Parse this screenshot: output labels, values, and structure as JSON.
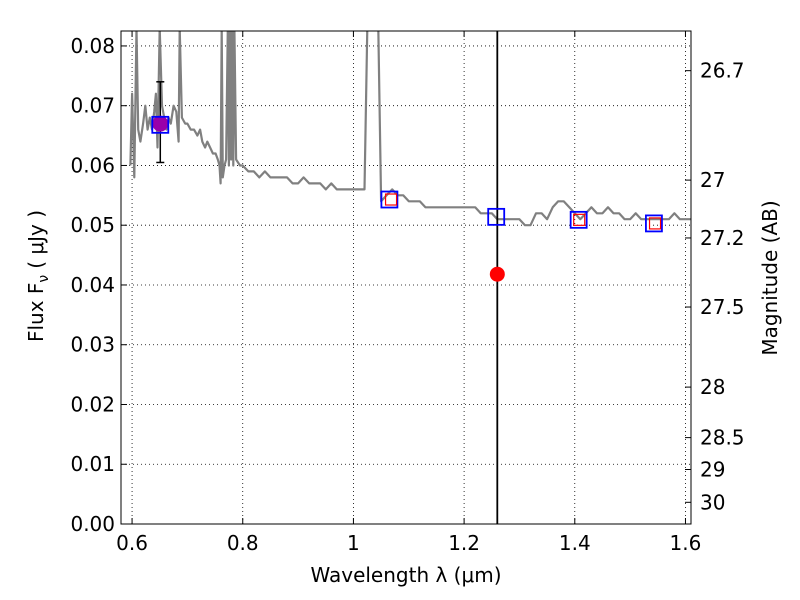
{
  "chart_data": {
    "type": "line",
    "xlabel": "Wavelength  λ (μm)",
    "ylabel": "Flux  F",
    "ylabel_sub": "ν",
    "ylabel_unit": "( μJy )",
    "y2label": "Magnitude (AB)",
    "xlim": [
      0.58,
      1.61
    ],
    "ylim": [
      0.0,
      0.0825
    ],
    "grid": true,
    "x_ticks": [
      {
        "value": 0.6,
        "label": "0.6"
      },
      {
        "value": 0.8,
        "label": "0.8"
      },
      {
        "value": 1.0,
        "label": "1"
      },
      {
        "value": 1.2,
        "label": "1.2"
      },
      {
        "value": 1.4,
        "label": "1.4"
      },
      {
        "value": 1.6,
        "label": "1.6"
      }
    ],
    "y_ticks": [
      {
        "value": 0.0,
        "label": "0.00"
      },
      {
        "value": 0.01,
        "label": "0.01"
      },
      {
        "value": 0.02,
        "label": "0.02"
      },
      {
        "value": 0.03,
        "label": "0.03"
      },
      {
        "value": 0.04,
        "label": "0.04"
      },
      {
        "value": 0.05,
        "label": "0.05"
      },
      {
        "value": 0.06,
        "label": "0.06"
      },
      {
        "value": 0.07,
        "label": "0.07"
      },
      {
        "value": 0.08,
        "label": "0.08"
      }
    ],
    "y2_ticks": [
      {
        "mag": 26.7,
        "label": "26.7"
      },
      {
        "mag": 27.0,
        "label": "27"
      },
      {
        "mag": 27.2,
        "label": "27.2"
      },
      {
        "mag": 27.5,
        "label": "27.5"
      },
      {
        "mag": 28.0,
        "label": "28"
      },
      {
        "mag": 28.5,
        "label": "28.5"
      },
      {
        "mag": 29.0,
        "label": "29"
      },
      {
        "mag": 30.0,
        "label": "30"
      }
    ],
    "model_spectrum": {
      "color": "#808080",
      "points": [
        [
          0.597,
          0.06
        ],
        [
          0.6,
          0.072
        ],
        [
          0.604,
          0.058
        ],
        [
          0.608,
          0.083
        ],
        [
          0.611,
          0.066
        ],
        [
          0.615,
          0.064
        ],
        [
          0.62,
          0.067
        ],
        [
          0.624,
          0.07
        ],
        [
          0.628,
          0.066
        ],
        [
          0.632,
          0.068
        ],
        [
          0.636,
          0.066
        ],
        [
          0.64,
          0.069
        ],
        [
          0.643,
          0.072
        ],
        [
          0.646,
          0.063
        ],
        [
          0.65,
          0.083
        ],
        [
          0.654,
          0.07
        ],
        [
          0.658,
          0.068
        ],
        [
          0.662,
          0.066
        ],
        [
          0.666,
          0.068
        ],
        [
          0.67,
          0.067
        ],
        [
          0.675,
          0.07
        ],
        [
          0.68,
          0.069
        ],
        [
          0.684,
          0.064
        ],
        [
          0.686,
          0.083
        ],
        [
          0.69,
          0.068
        ],
        [
          0.696,
          0.067
        ],
        [
          0.7,
          0.067
        ],
        [
          0.706,
          0.066
        ],
        [
          0.712,
          0.066
        ],
        [
          0.718,
          0.065
        ],
        [
          0.723,
          0.066
        ],
        [
          0.727,
          0.064
        ],
        [
          0.732,
          0.063
        ],
        [
          0.736,
          0.064
        ],
        [
          0.741,
          0.063
        ],
        [
          0.746,
          0.062
        ],
        [
          0.751,
          0.062
        ],
        [
          0.755,
          0.061
        ],
        [
          0.758,
          0.06
        ],
        [
          0.76,
          0.057
        ],
        [
          0.762,
          0.083
        ],
        [
          0.764,
          0.058
        ],
        [
          0.767,
          0.06
        ],
        [
          0.77,
          0.061
        ],
        [
          0.773,
          0.083
        ],
        [
          0.775,
          0.06
        ],
        [
          0.777,
          0.083
        ],
        [
          0.779,
          0.061
        ],
        [
          0.781,
          0.083
        ],
        [
          0.783,
          0.06
        ],
        [
          0.785,
          0.083
        ],
        [
          0.788,
          0.061
        ],
        [
          0.795,
          0.06
        ],
        [
          0.8,
          0.06
        ],
        [
          0.81,
          0.059
        ],
        [
          0.82,
          0.059
        ],
        [
          0.83,
          0.058
        ],
        [
          0.84,
          0.059
        ],
        [
          0.85,
          0.058
        ],
        [
          0.86,
          0.058
        ],
        [
          0.87,
          0.058
        ],
        [
          0.88,
          0.058
        ],
        [
          0.89,
          0.057
        ],
        [
          0.9,
          0.057
        ],
        [
          0.91,
          0.058
        ],
        [
          0.92,
          0.057
        ],
        [
          0.93,
          0.057
        ],
        [
          0.94,
          0.057
        ],
        [
          0.95,
          0.056
        ],
        [
          0.96,
          0.057
        ],
        [
          0.97,
          0.056
        ],
        [
          0.98,
          0.056
        ],
        [
          0.99,
          0.056
        ],
        [
          1.0,
          0.056
        ],
        [
          1.01,
          0.056
        ],
        [
          1.02,
          0.056
        ],
        [
          1.025,
          0.083
        ],
        [
          1.045,
          0.083
        ],
        [
          1.05,
          0.054
        ],
        [
          1.06,
          0.055
        ],
        [
          1.07,
          0.056
        ],
        [
          1.08,
          0.055
        ],
        [
          1.09,
          0.055
        ],
        [
          1.1,
          0.054
        ],
        [
          1.11,
          0.054
        ],
        [
          1.12,
          0.054
        ],
        [
          1.13,
          0.053
        ],
        [
          1.14,
          0.053
        ],
        [
          1.15,
          0.053
        ],
        [
          1.16,
          0.053
        ],
        [
          1.17,
          0.053
        ],
        [
          1.18,
          0.053
        ],
        [
          1.19,
          0.053
        ],
        [
          1.2,
          0.053
        ],
        [
          1.21,
          0.053
        ],
        [
          1.22,
          0.053
        ],
        [
          1.23,
          0.052
        ],
        [
          1.24,
          0.052
        ],
        [
          1.25,
          0.052
        ],
        [
          1.26,
          0.051
        ],
        [
          1.27,
          0.051
        ],
        [
          1.28,
          0.051
        ],
        [
          1.29,
          0.051
        ],
        [
          1.3,
          0.051
        ],
        [
          1.31,
          0.05
        ],
        [
          1.32,
          0.05
        ],
        [
          1.33,
          0.052
        ],
        [
          1.34,
          0.052
        ],
        [
          1.35,
          0.051
        ],
        [
          1.36,
          0.053
        ],
        [
          1.37,
          0.054
        ],
        [
          1.38,
          0.054
        ],
        [
          1.39,
          0.053
        ],
        [
          1.4,
          0.052
        ],
        [
          1.41,
          0.051
        ],
        [
          1.42,
          0.052
        ],
        [
          1.43,
          0.053
        ],
        [
          1.44,
          0.052
        ],
        [
          1.45,
          0.052
        ],
        [
          1.46,
          0.053
        ],
        [
          1.47,
          0.052
        ],
        [
          1.48,
          0.052
        ],
        [
          1.49,
          0.051
        ],
        [
          1.5,
          0.051
        ],
        [
          1.51,
          0.052
        ],
        [
          1.52,
          0.051
        ],
        [
          1.53,
          0.051
        ],
        [
          1.54,
          0.051
        ],
        [
          1.55,
          0.051
        ],
        [
          1.56,
          0.051
        ],
        [
          1.57,
          0.051
        ],
        [
          1.58,
          0.052
        ],
        [
          1.59,
          0.051
        ],
        [
          1.6,
          0.051
        ],
        [
          1.61,
          0.051
        ]
      ]
    },
    "vertical_line": {
      "x": 1.26,
      "color": "#000000"
    },
    "model_photometry": {
      "color": "#0000ff",
      "points": [
        [
          0.651,
          0.0668
        ],
        [
          1.065,
          0.0543
        ],
        [
          1.258,
          0.0514
        ],
        [
          1.407,
          0.0509
        ],
        [
          1.543,
          0.0503
        ]
      ]
    },
    "observed_points": {
      "color": "#ff0000",
      "points": [
        [
          1.068,
          0.0543
        ],
        [
          1.408,
          0.0509
        ],
        [
          1.545,
          0.0503
        ]
      ]
    },
    "detection": {
      "color": "#9900aa",
      "x": 0.651,
      "y": 0.067,
      "ylow": 0.0605,
      "yhigh": 0.074
    },
    "red_dot": {
      "color": "#ff0000",
      "x": 1.26,
      "y": 0.0418
    }
  }
}
